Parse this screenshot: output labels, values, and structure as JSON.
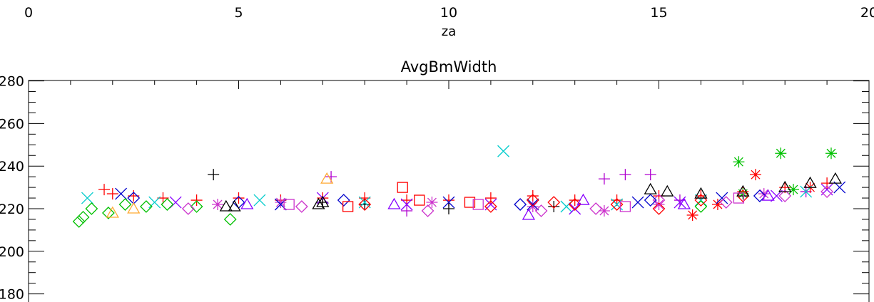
{
  "chart_data": {
    "type": "scatter",
    "title": "AvgBmWidth",
    "xlabel": "za",
    "ylabel": "",
    "xlim": [
      0,
      20
    ],
    "ylim": [
      170,
      285
    ],
    "x_ticks": [
      "0",
      "5",
      "10",
      "15",
      "20"
    ],
    "y_ticks": [
      "180",
      "200",
      "220",
      "240",
      "260",
      "280"
    ],
    "x_tick_values": [
      0,
      5,
      10,
      15,
      20
    ],
    "y_tick_values": [
      180,
      200,
      220,
      240,
      260,
      280
    ],
    "grid": false,
    "series": [
      {
        "marker": "plus",
        "color": "#ff0000",
        "points": [
          [
            1.8,
            229
          ],
          [
            2.0,
            227
          ],
          [
            2.5,
            226
          ],
          [
            3.2,
            225
          ],
          [
            4.0,
            224
          ],
          [
            5.0,
            225
          ],
          [
            6.0,
            224
          ],
          [
            7.0,
            225
          ],
          [
            8.0,
            225
          ],
          [
            9.0,
            224
          ],
          [
            10.0,
            224
          ],
          [
            11.0,
            225
          ],
          [
            12.0,
            226
          ],
          [
            13.0,
            224
          ],
          [
            14.0,
            224
          ],
          [
            15.0,
            226
          ],
          [
            16.0,
            226
          ],
          [
            17.0,
            228
          ],
          [
            18.0,
            230
          ],
          [
            19.0,
            232
          ]
        ]
      },
      {
        "marker": "plus",
        "color": "#000000",
        "points": [
          [
            4.4,
            236
          ],
          [
            7.0,
            223
          ],
          [
            8.0,
            222
          ],
          [
            10.0,
            220
          ],
          [
            12.5,
            221
          ]
        ]
      },
      {
        "marker": "plus",
        "color": "#b000d0",
        "points": [
          [
            7.2,
            235
          ],
          [
            9.0,
            219
          ],
          [
            13.7,
            234
          ],
          [
            14.2,
            236
          ],
          [
            14.8,
            236
          ],
          [
            15.5,
            224
          ],
          [
            18.5,
            228
          ]
        ]
      },
      {
        "marker": "asterisk",
        "color": "#00c000",
        "points": [
          [
            16.9,
            242
          ],
          [
            17.9,
            246
          ],
          [
            19.1,
            246
          ],
          [
            17.0,
            227
          ],
          [
            18.2,
            229
          ]
        ]
      },
      {
        "marker": "asterisk",
        "color": "#ff0000",
        "points": [
          [
            17.3,
            236
          ],
          [
            15.8,
            217
          ],
          [
            16.4,
            222
          ],
          [
            18.6,
            230
          ]
        ]
      },
      {
        "marker": "asterisk",
        "color": "#cc33cc",
        "points": [
          [
            4.5,
            222
          ],
          [
            6.0,
            223
          ],
          [
            9.6,
            223
          ],
          [
            12.0,
            221
          ],
          [
            13.7,
            219
          ],
          [
            15.0,
            222
          ],
          [
            17.5,
            227
          ]
        ]
      },
      {
        "marker": "x",
        "color": "#00cccc",
        "points": [
          [
            1.4,
            225
          ],
          [
            3.0,
            223
          ],
          [
            5.5,
            224
          ],
          [
            8.0,
            223
          ],
          [
            11.3,
            247
          ],
          [
            12.8,
            221
          ],
          [
            14.0,
            222
          ],
          [
            16.0,
            224
          ],
          [
            18.5,
            228
          ]
        ]
      },
      {
        "marker": "x",
        "color": "#0000cc",
        "points": [
          [
            2.2,
            227
          ],
          [
            6.0,
            222
          ],
          [
            10.0,
            223
          ],
          [
            12.0,
            222
          ],
          [
            14.5,
            223
          ],
          [
            16.5,
            225
          ],
          [
            19.3,
            230
          ]
        ]
      },
      {
        "marker": "x",
        "color": "#8800ff",
        "points": [
          [
            3.5,
            223
          ],
          [
            7.0,
            225
          ],
          [
            9.0,
            222
          ],
          [
            11.0,
            222
          ],
          [
            13.0,
            220
          ],
          [
            15.5,
            223
          ],
          [
            17.8,
            226
          ],
          [
            19.0,
            229
          ]
        ]
      },
      {
        "marker": "diamond",
        "color": "#00c000",
        "points": [
          [
            1.2,
            214
          ],
          [
            1.3,
            216
          ],
          [
            1.5,
            220
          ],
          [
            1.9,
            218
          ],
          [
            2.3,
            222
          ],
          [
            2.8,
            221
          ],
          [
            3.3,
            222
          ],
          [
            4.0,
            221
          ],
          [
            4.8,
            215
          ],
          [
            16.0,
            221
          ]
        ]
      },
      {
        "marker": "diamond",
        "color": "#ff0000",
        "points": [
          [
            8.0,
            222
          ],
          [
            11.0,
            221
          ],
          [
            12.0,
            224
          ],
          [
            12.5,
            223
          ],
          [
            13.0,
            222
          ],
          [
            14.0,
            222
          ],
          [
            15.0,
            220
          ],
          [
            16.0,
            224
          ],
          [
            17.0,
            226
          ]
        ]
      },
      {
        "marker": "diamond",
        "color": "#cc33cc",
        "points": [
          [
            3.8,
            220
          ],
          [
            6.5,
            221
          ],
          [
            9.5,
            219
          ],
          [
            12.2,
            219
          ],
          [
            13.5,
            220
          ],
          [
            15.0,
            224
          ],
          [
            16.6,
            223
          ],
          [
            18.0,
            226
          ],
          [
            19.0,
            228
          ]
        ]
      },
      {
        "marker": "diamond",
        "color": "#0000cc",
        "points": [
          [
            2.5,
            225
          ],
          [
            5.0,
            223
          ],
          [
            7.5,
            224
          ],
          [
            11.7,
            222
          ],
          [
            14.8,
            224
          ],
          [
            17.4,
            226
          ]
        ]
      },
      {
        "marker": "triangle",
        "color": "#000000",
        "points": [
          [
            4.7,
            221
          ],
          [
            4.9,
            221
          ],
          [
            6.9,
            222
          ],
          [
            7.0,
            223
          ],
          [
            14.8,
            229
          ],
          [
            15.2,
            228
          ],
          [
            16.0,
            227
          ],
          [
            17.0,
            228
          ],
          [
            18.0,
            230
          ],
          [
            18.6,
            232
          ],
          [
            19.2,
            234
          ]
        ]
      },
      {
        "marker": "triangle",
        "color": "#ffaa33",
        "points": [
          [
            7.1,
            234
          ],
          [
            2.0,
            218
          ],
          [
            2.5,
            220
          ]
        ]
      },
      {
        "marker": "triangle",
        "color": "#8800ff",
        "points": [
          [
            5.2,
            222
          ],
          [
            8.7,
            222
          ],
          [
            11.9,
            217
          ],
          [
            13.2,
            224
          ],
          [
            15.6,
            222
          ],
          [
            17.6,
            226
          ]
        ]
      },
      {
        "marker": "square",
        "color": "#ff0000",
        "points": [
          [
            8.9,
            230
          ],
          [
            7.6,
            221
          ],
          [
            9.3,
            224
          ],
          [
            10.5,
            223
          ]
        ]
      },
      {
        "marker": "square",
        "color": "#cc33cc",
        "points": [
          [
            6.2,
            222
          ],
          [
            10.7,
            222
          ],
          [
            14.2,
            221
          ],
          [
            16.9,
            225
          ]
        ]
      }
    ]
  }
}
